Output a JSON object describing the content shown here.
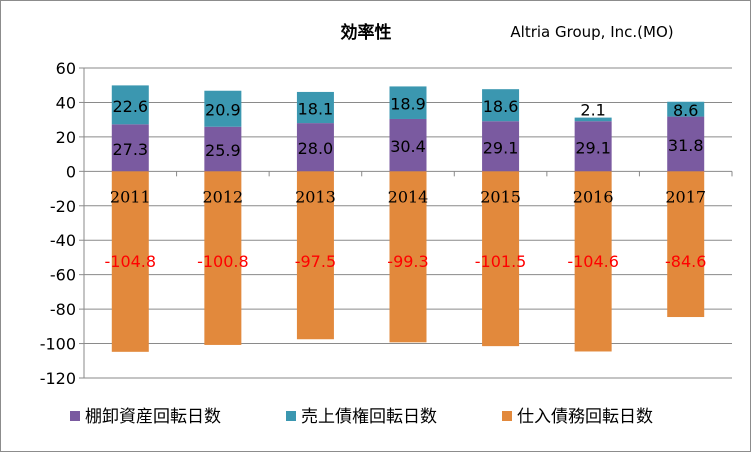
{
  "chart_data": {
    "type": "bar",
    "stacked": true,
    "title": "効率性",
    "subtitle": "Altria Group, Inc.(MO)",
    "categories": [
      "2011",
      "2012",
      "2013",
      "2014",
      "2015",
      "2016",
      "2017"
    ],
    "series": [
      {
        "name": "棚卸資産回転日数",
        "color": "#7a5aa0",
        "values": [
          27.3,
          25.9,
          28.0,
          30.4,
          29.1,
          29.1,
          31.8
        ],
        "labels": [
          "27.3",
          "25.9",
          "28.0",
          "30.4",
          "29.1",
          "29.1",
          "31.8"
        ]
      },
      {
        "name": "売上債権回転日数",
        "color": "#3b97b0",
        "values": [
          22.6,
          20.9,
          18.1,
          18.9,
          18.6,
          2.1,
          8.6
        ],
        "labels": [
          "22.6",
          "20.9",
          "18.1",
          "18.9",
          "18.6",
          "2.1",
          "8.6"
        ]
      },
      {
        "name": "仕入債務回転日数",
        "color": "#e2893c",
        "values": [
          -104.8,
          -100.8,
          -97.5,
          -99.3,
          -101.5,
          -104.6,
          -84.6
        ],
        "labels": [
          "-104.8",
          "-100.8",
          "-97.5",
          "-99.3",
          "-101.5",
          "-104.6",
          "-84.6"
        ]
      }
    ],
    "ylim": [
      -120,
      60
    ],
    "yticks": [
      -120,
      -100,
      -80,
      -60,
      -40,
      -20,
      0,
      20,
      40,
      60
    ],
    "grid": true,
    "legend": "bottom",
    "xlabel": "",
    "ylabel": ""
  }
}
